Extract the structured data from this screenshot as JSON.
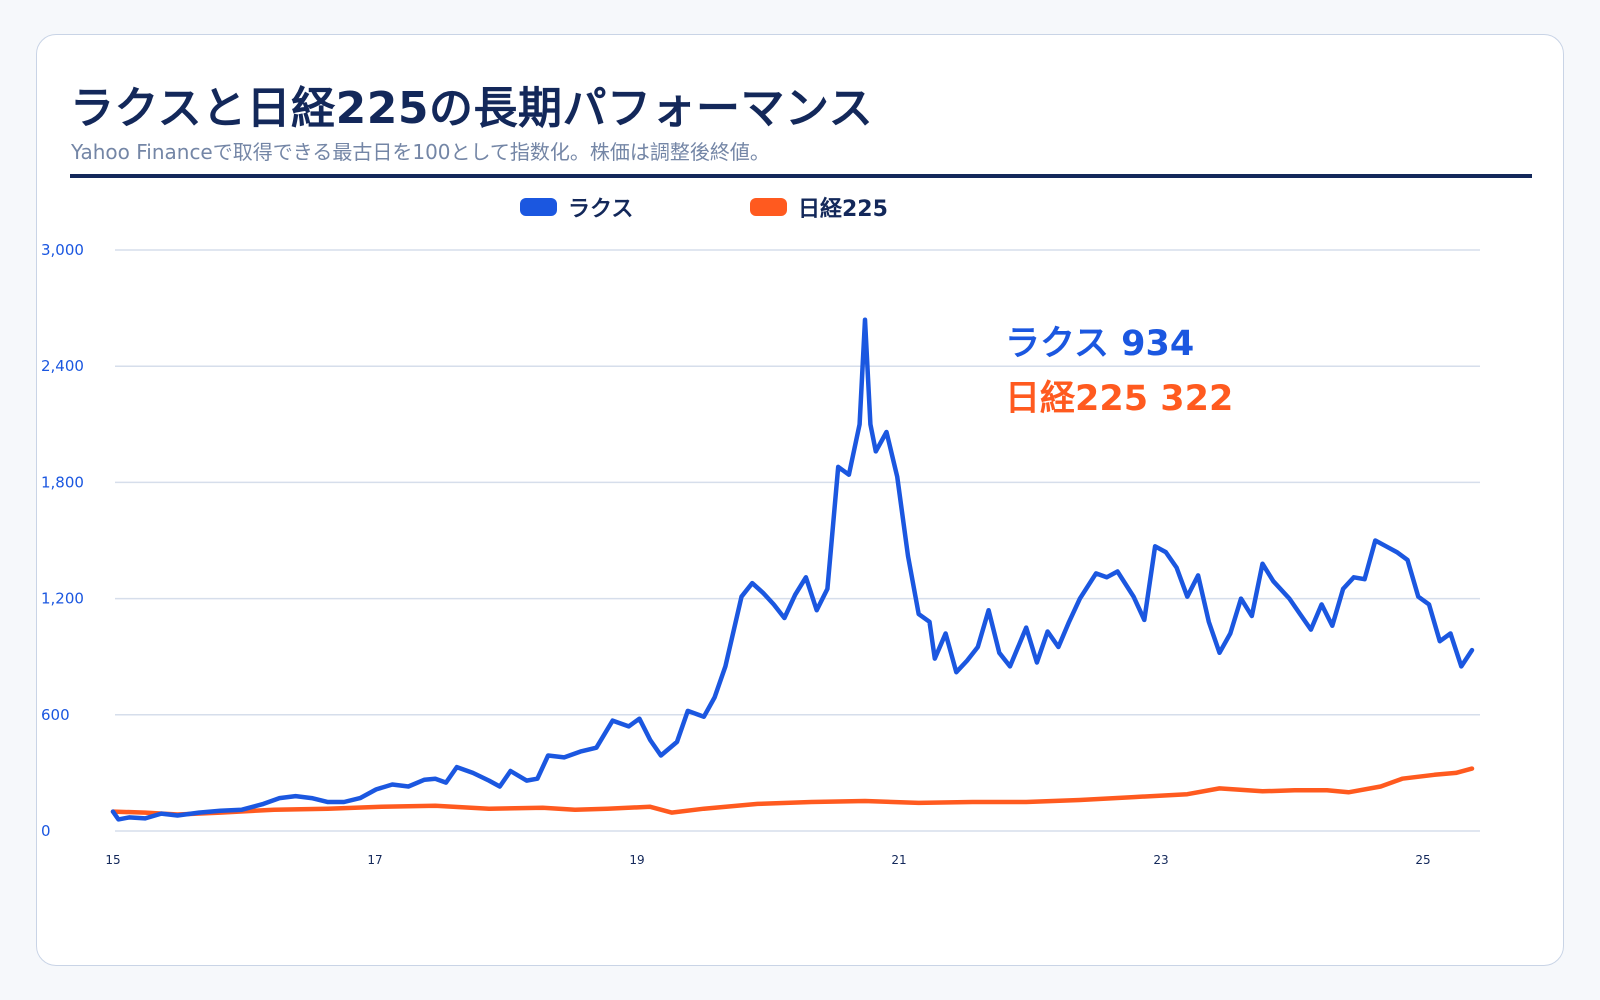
{
  "title": "ラクスと日経225の長期パフォーマンス",
  "subtitle": "Yahoo Financeで取得できる最古日を100として指数化。株価は調整後終値。",
  "colors": {
    "rakus": "#1b57e0",
    "nikkei": "#ff5a1f",
    "title": "#13285a",
    "grid": "#d6deeb"
  },
  "chart_data": {
    "type": "line",
    "x_ticks": [
      "15",
      "17",
      "19",
      "21",
      "23",
      "25"
    ],
    "y_ticks": [
      "0",
      "600",
      "1,200",
      "1,800",
      "2,400",
      "3,000"
    ],
    "ylim": [
      0,
      3000
    ],
    "grid": "horizontal",
    "legend_position": "top",
    "series": [
      {
        "name": "ラクス",
        "color": "#1b57e0",
        "end_label": "ラクス 934",
        "points": [
          [
            2015.0,
            100
          ],
          [
            2015.05,
            60
          ],
          [
            2015.15,
            70
          ],
          [
            2015.3,
            65
          ],
          [
            2015.45,
            90
          ],
          [
            2015.6,
            80
          ],
          [
            2015.8,
            95
          ],
          [
            2016.0,
            105
          ],
          [
            2016.2,
            110
          ],
          [
            2016.4,
            140
          ],
          [
            2016.55,
            170
          ],
          [
            2016.7,
            180
          ],
          [
            2016.85,
            170
          ],
          [
            2017.0,
            150
          ],
          [
            2017.15,
            150
          ],
          [
            2017.3,
            170
          ],
          [
            2017.45,
            215
          ],
          [
            2017.6,
            240
          ],
          [
            2017.75,
            230
          ],
          [
            2017.9,
            265
          ],
          [
            2018.0,
            270
          ],
          [
            2018.1,
            250
          ],
          [
            2018.2,
            330
          ],
          [
            2018.35,
            300
          ],
          [
            2018.5,
            260
          ],
          [
            2018.6,
            230
          ],
          [
            2018.7,
            310
          ],
          [
            2018.85,
            260
          ],
          [
            2018.95,
            270
          ],
          [
            2019.05,
            390
          ],
          [
            2019.2,
            380
          ],
          [
            2019.35,
            410
          ],
          [
            2019.5,
            430
          ],
          [
            2019.65,
            570
          ],
          [
            2019.8,
            540
          ],
          [
            2019.9,
            580
          ],
          [
            2020.0,
            470
          ],
          [
            2020.1,
            390
          ],
          [
            2020.25,
            460
          ],
          [
            2020.35,
            620
          ],
          [
            2020.5,
            590
          ],
          [
            2020.6,
            690
          ],
          [
            2020.7,
            850
          ],
          [
            2020.85,
            1210
          ],
          [
            2020.95,
            1280
          ],
          [
            2021.05,
            1230
          ],
          [
            2021.15,
            1170
          ],
          [
            2021.25,
            1100
          ],
          [
            2021.35,
            1220
          ],
          [
            2021.45,
            1310
          ],
          [
            2021.55,
            1140
          ],
          [
            2021.65,
            1250
          ],
          [
            2021.75,
            1880
          ],
          [
            2021.85,
            1840
          ],
          [
            2021.95,
            2100
          ],
          [
            2022.0,
            2640
          ],
          [
            2022.05,
            2100
          ],
          [
            2022.1,
            1960
          ],
          [
            2022.2,
            2060
          ],
          [
            2022.3,
            1830
          ],
          [
            2022.4,
            1420
          ],
          [
            2022.5,
            1120
          ],
          [
            2022.6,
            1080
          ],
          [
            2022.65,
            890
          ],
          [
            2022.75,
            1020
          ],
          [
            2022.85,
            820
          ],
          [
            2022.95,
            880
          ],
          [
            2023.05,
            950
          ],
          [
            2023.15,
            1140
          ],
          [
            2023.25,
            920
          ],
          [
            2023.35,
            850
          ],
          [
            2023.5,
            1050
          ],
          [
            2023.6,
            870
          ],
          [
            2023.7,
            1030
          ],
          [
            2023.8,
            950
          ],
          [
            2023.9,
            1080
          ],
          [
            2024.0,
            1200
          ],
          [
            2024.15,
            1330
          ],
          [
            2024.25,
            1310
          ],
          [
            2024.35,
            1340
          ],
          [
            2024.5,
            1210
          ],
          [
            2024.6,
            1090
          ],
          [
            2024.7,
            1470
          ],
          [
            2024.8,
            1440
          ],
          [
            2024.9,
            1360
          ],
          [
            2025.0,
            1210
          ],
          [
            2025.1,
            1320
          ],
          [
            2025.2,
            1080
          ],
          [
            2025.3,
            920
          ],
          [
            2025.4,
            1020
          ],
          [
            2025.5,
            1200
          ],
          [
            2025.6,
            1110
          ],
          [
            2025.7,
            1380
          ],
          [
            2025.8,
            1290
          ],
          [
            2025.95,
            1200
          ],
          [
            2026.05,
            1120
          ],
          [
            2026.15,
            1040
          ],
          [
            2026.25,
            1170
          ],
          [
            2026.35,
            1060
          ],
          [
            2026.45,
            1250
          ],
          [
            2026.55,
            1310
          ],
          [
            2026.65,
            1300
          ],
          [
            2026.75,
            1500
          ],
          [
            2026.85,
            1470
          ],
          [
            2026.95,
            1440
          ],
          [
            2027.05,
            1400
          ],
          [
            2027.15,
            1210
          ],
          [
            2027.25,
            1170
          ],
          [
            2027.35,
            980
          ],
          [
            2027.45,
            1020
          ],
          [
            2027.55,
            850
          ],
          [
            2027.65,
            934
          ]
        ]
      },
      {
        "name": "日経225",
        "color": "#ff5a1f",
        "end_label": "日経225 322",
        "points": [
          [
            2015.0,
            100
          ],
          [
            2015.3,
            95
          ],
          [
            2015.6,
            85
          ],
          [
            2016.0,
            95
          ],
          [
            2016.5,
            110
          ],
          [
            2017.0,
            115
          ],
          [
            2017.5,
            125
          ],
          [
            2018.0,
            130
          ],
          [
            2018.5,
            115
          ],
          [
            2019.0,
            120
          ],
          [
            2019.3,
            110
          ],
          [
            2019.6,
            115
          ],
          [
            2020.0,
            125
          ],
          [
            2020.2,
            95
          ],
          [
            2020.5,
            115
          ],
          [
            2021.0,
            140
          ],
          [
            2021.5,
            150
          ],
          [
            2022.0,
            155
          ],
          [
            2022.5,
            145
          ],
          [
            2023.0,
            150
          ],
          [
            2023.5,
            150
          ],
          [
            2024.0,
            160
          ],
          [
            2024.5,
            175
          ],
          [
            2025.0,
            190
          ],
          [
            2025.3,
            220
          ],
          [
            2025.7,
            205
          ],
          [
            2026.0,
            210
          ],
          [
            2026.3,
            210
          ],
          [
            2026.5,
            200
          ],
          [
            2026.8,
            230
          ],
          [
            2027.0,
            270
          ],
          [
            2027.3,
            290
          ],
          [
            2027.5,
            300
          ],
          [
            2027.65,
            322
          ]
        ]
      }
    ]
  }
}
